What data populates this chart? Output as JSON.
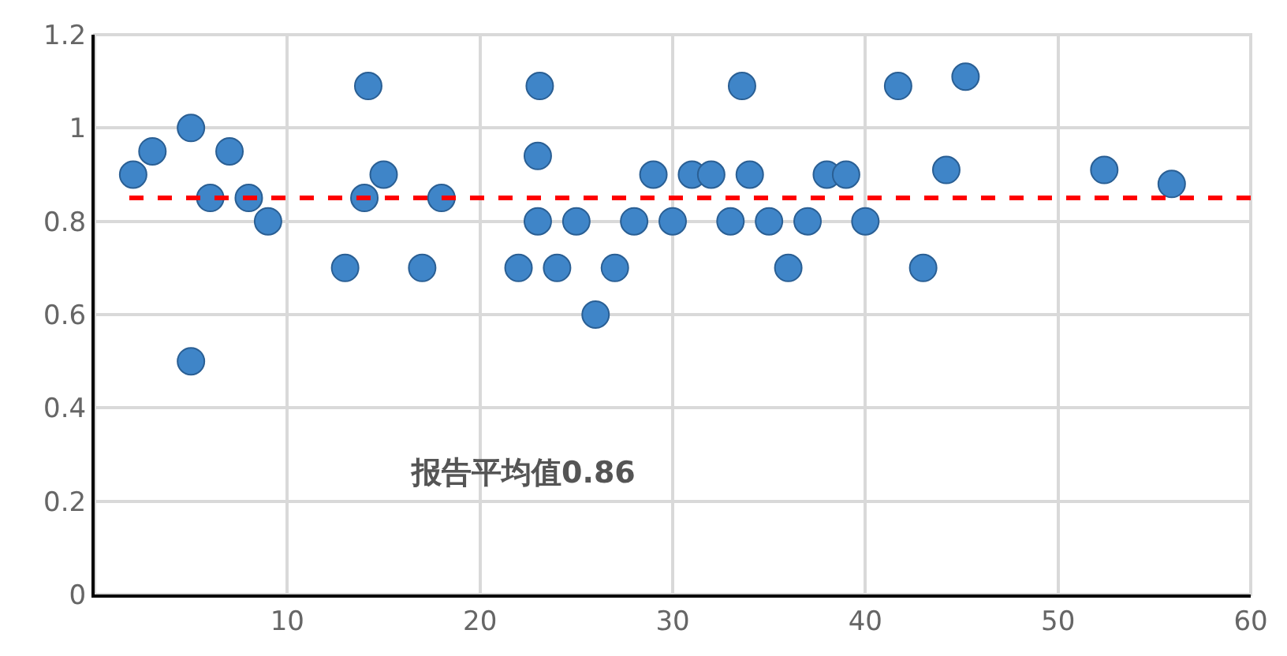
{
  "chart_data": {
    "type": "scatter",
    "marker": "circle",
    "grid": true,
    "x": [
      2,
      3,
      5,
      5,
      6,
      7,
      8,
      9,
      13,
      14,
      14.2,
      15,
      17,
      18,
      22,
      23.1,
      23,
      23,
      24,
      25,
      26,
      27,
      28,
      29,
      30,
      31,
      32,
      33,
      33.6,
      34,
      35,
      36,
      37,
      38,
      39,
      40,
      41.7,
      43,
      44.2,
      45.2,
      52.4,
      55.9
    ],
    "series": [
      {
        "color": "#3f85c8",
        "values": [
          0.9,
          0.95,
          1.0,
          0.5,
          0.85,
          0.95,
          0.85,
          0.8,
          0.7,
          0.85,
          1.09,
          0.9,
          0.7,
          0.85,
          0.7,
          1.09,
          0.94,
          0.8,
          0.7,
          0.8,
          0.6,
          0.7,
          0.8,
          0.9,
          0.8,
          0.9,
          0.9,
          0.8,
          1.09,
          0.9,
          0.8,
          0.7,
          0.8,
          0.9,
          0.9,
          0.8,
          1.09,
          0.7,
          0.91,
          1.11,
          0.91,
          0.88
        ]
      }
    ],
    "xlim": [
      0,
      60
    ],
    "xticks": [
      10,
      20,
      30,
      40,
      50,
      60
    ],
    "ylim": [
      0,
      1.2
    ],
    "yticks": [
      0,
      0.2,
      0.4,
      0.6,
      0.8,
      1,
      1.2
    ],
    "ref_lines": [
      {
        "axis": "y",
        "value": 0.85,
        "color": "#ff0000",
        "line_style": "dashed"
      }
    ],
    "annotations": [
      "报告平均值0.86"
    ]
  }
}
